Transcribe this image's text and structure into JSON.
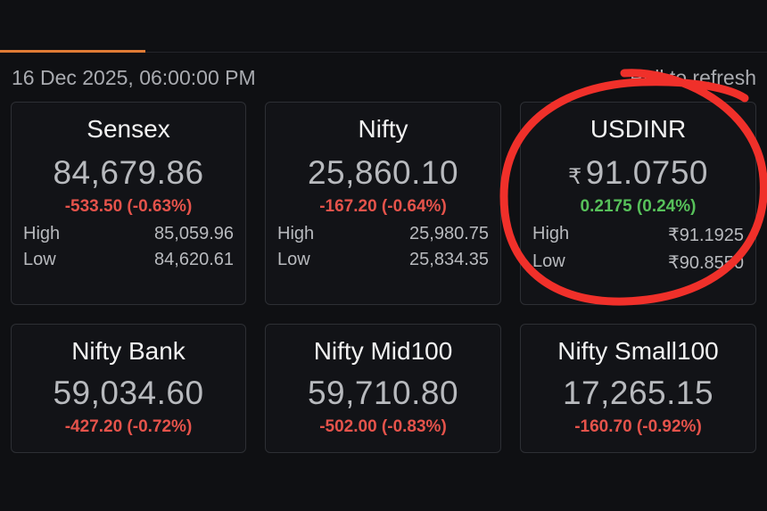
{
  "header": {
    "timestamp": "16 Dec 2025, 06:00:00 PM",
    "refresh_hint": "Pull to refresh"
  },
  "colors": {
    "accent": "#e07b35",
    "negative": "#e5534b",
    "positive": "#57c15a",
    "annotation": "#f0302a"
  },
  "labels": {
    "high": "High",
    "low": "Low",
    "currency": "₹"
  },
  "indices": [
    {
      "name": "Sensex",
      "price": "84,679.86",
      "change": "-533.50 (-0.63%)",
      "direction": "down",
      "high": "85,059.96",
      "low": "84,620.61"
    },
    {
      "name": "Nifty",
      "price": "25,860.10",
      "change": "-167.20 (-0.64%)",
      "direction": "down",
      "high": "25,980.75",
      "low": "25,834.35"
    },
    {
      "name": "USDINR",
      "price": "91.0750",
      "change": "0.2175 (0.24%)",
      "direction": "up",
      "high": "₹91.1925",
      "low": "₹90.8550"
    },
    {
      "name": "Nifty Bank",
      "price": "59,034.60",
      "change": "-427.20 (-0.72%)",
      "direction": "down"
    },
    {
      "name": "Nifty Mid100",
      "price": "59,710.80",
      "change": "-502.00 (-0.83%)",
      "direction": "down"
    },
    {
      "name": "Nifty Small100",
      "price": "17,265.15",
      "change": "-160.70 (-0.92%)",
      "direction": "down"
    }
  ]
}
